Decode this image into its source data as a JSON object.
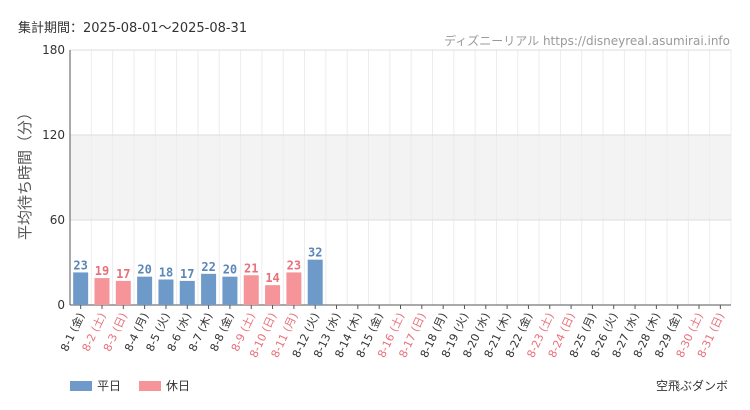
{
  "header": {
    "period": "集計期間：2025-08-01〜2025-08-31",
    "credit": "ディズニーリアル https://disneyreal.asumirai.info"
  },
  "footer": {
    "attraction": "空飛ぶダンボ"
  },
  "colors": {
    "weekday": "#6d9ac8",
    "holiday": "#f5959a",
    "weekday_label": "#5a86b8",
    "holiday_label": "#e8707a"
  },
  "chart_data": {
    "type": "bar",
    "ylabel": "平均待ち時間（分）",
    "ylim": [
      0,
      180
    ],
    "yticks": [
      "0",
      "60",
      "120",
      "180"
    ],
    "grid": true,
    "legend": "bottom-left",
    "series": [
      {
        "name": "平日",
        "key": "weekday"
      },
      {
        "name": "休日",
        "key": "holiday"
      }
    ],
    "categories": [
      "8-1 (金)",
      "8-2 (土)",
      "8-3 (日)",
      "8-4 (月)",
      "8-5 (火)",
      "8-6 (水)",
      "8-7 (木)",
      "8-8 (金)",
      "8-9 (土)",
      "8-10 (日)",
      "8-11 (月)",
      "8-12 (火)",
      "8-13 (水)",
      "8-14 (木)",
      "8-15 (金)",
      "8-16 (土)",
      "8-17 (日)",
      "8-18 (月)",
      "8-19 (火)",
      "8-20 (水)",
      "8-21 (木)",
      "8-22 (金)",
      "8-23 (土)",
      "8-24 (日)",
      "8-25 (月)",
      "8-26 (火)",
      "8-27 (水)",
      "8-28 (木)",
      "8-29 (金)",
      "8-30 (土)",
      "8-31 (日)"
    ],
    "values": [
      23,
      19,
      17,
      20,
      18,
      17,
      22,
      20,
      21,
      14,
      23,
      32,
      null,
      null,
      null,
      null,
      null,
      null,
      null,
      null,
      null,
      null,
      null,
      null,
      null,
      null,
      null,
      null,
      null,
      null,
      null
    ],
    "day_type": [
      "weekday",
      "holiday",
      "holiday",
      "weekday",
      "weekday",
      "weekday",
      "weekday",
      "weekday",
      "holiday",
      "holiday",
      "holiday",
      "weekday",
      "weekday",
      "weekday",
      "weekday",
      "holiday",
      "holiday",
      "weekday",
      "weekday",
      "weekday",
      "weekday",
      "weekday",
      "holiday",
      "holiday",
      "weekday",
      "weekday",
      "weekday",
      "weekday",
      "weekday",
      "holiday",
      "holiday"
    ]
  }
}
